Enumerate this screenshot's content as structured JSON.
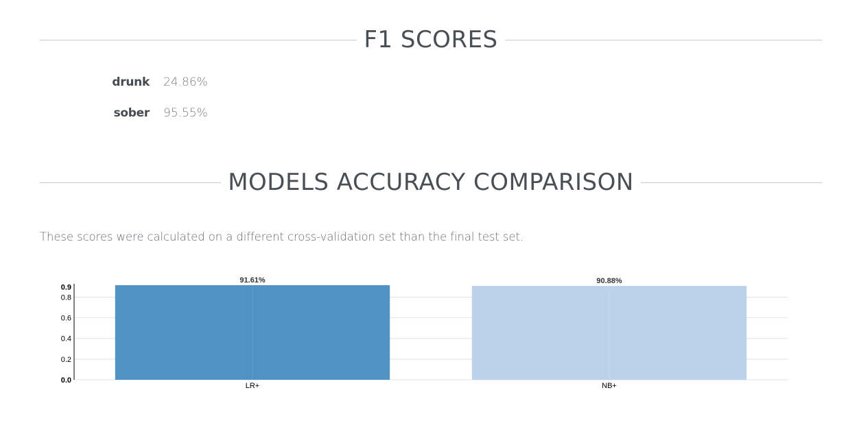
{
  "f1_section": {
    "title": "F1 SCORES",
    "scores": [
      {
        "label": "drunk",
        "value": "24.86%"
      },
      {
        "label": "sober",
        "value": "95.55%"
      }
    ]
  },
  "accuracy_section": {
    "title": "MODELS ACCURACY COMPARISON",
    "description": "These scores were calculated on a different cross-validation set than the final test set."
  },
  "colors": {
    "bar_lr": "#4f92c4",
    "bar_nb": "#bcd1ec",
    "grid": "#e3e3e3",
    "axis": "#000000",
    "heading_rule": "#c9c9c9"
  },
  "chart_data": {
    "type": "bar",
    "categories": [
      "LR+",
      "NB+"
    ],
    "values": [
      0.9161,
      0.9088
    ],
    "data_labels": [
      "91.61%",
      "90.88%"
    ],
    "yticks": [
      "0.0",
      "0.2",
      "0.4",
      "0.6",
      "0.8",
      "0.9"
    ],
    "ylim": [
      0,
      0.9161
    ],
    "grid": true,
    "legend": "none"
  }
}
